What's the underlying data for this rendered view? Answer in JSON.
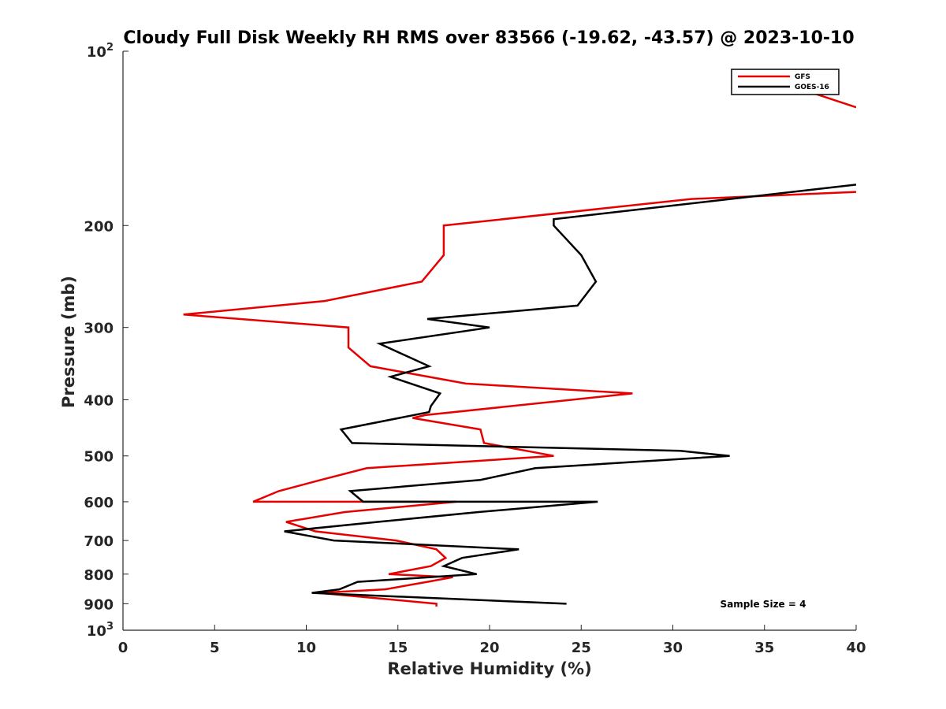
{
  "chart_data": {
    "type": "line",
    "title": "Cloudy Full Disk Weekly RH RMS over 83566 (-19.62, -43.57) @ 2023-10-10",
    "xlabel": "Relative Humidity (%)",
    "ylabel": "Pressure (mb)",
    "xlim": [
      0,
      40
    ],
    "ylim": [
      100,
      1000
    ],
    "yscale": "log",
    "yreversed": true,
    "xticks": [
      0,
      5,
      10,
      15,
      20,
      25,
      30,
      35,
      40
    ],
    "xtick_labels": [
      "0",
      "5",
      "10",
      "15",
      "20",
      "25",
      "30",
      "35",
      "40"
    ],
    "yticks": [
      {
        "value": 100,
        "base": "10",
        "exp": "2"
      },
      {
        "value": 200,
        "label": "200"
      },
      {
        "value": 300,
        "label": "300"
      },
      {
        "value": 400,
        "label": "400"
      },
      {
        "value": 500,
        "label": "500"
      },
      {
        "value": 600,
        "label": "600"
      },
      {
        "value": 700,
        "label": "700"
      },
      {
        "value": 800,
        "label": "800"
      },
      {
        "value": 900,
        "label": "900"
      },
      {
        "value": 1000,
        "base": "10",
        "exp": "3"
      }
    ],
    "grid": false,
    "legend_position": "top-right",
    "annotation": "Sample Size = 4",
    "series": [
      {
        "name": "GFS",
        "color": "#e60000",
        "points": [
          [
            40,
            125
          ],
          [
            36.9,
            116
          ],
          [
            40,
            175
          ],
          [
            31,
            180
          ],
          [
            17.5,
            200
          ],
          [
            17.5,
            225
          ],
          [
            16.3,
            250
          ],
          [
            11,
            270
          ],
          [
            3.3,
            285
          ],
          [
            12.3,
            300
          ],
          [
            12.3,
            325
          ],
          [
            13.5,
            350
          ],
          [
            18.7,
            375
          ],
          [
            27.8,
            390
          ],
          [
            16.5,
            425
          ],
          [
            15.8,
            430
          ],
          [
            19.5,
            450
          ],
          [
            19.7,
            475
          ],
          [
            23.5,
            500
          ],
          [
            13.3,
            525
          ],
          [
            10.8,
            550
          ],
          [
            8.5,
            575
          ],
          [
            7.1,
            600
          ],
          [
            18.2,
            600
          ],
          [
            12.1,
            625
          ],
          [
            8.9,
            650
          ],
          [
            10.5,
            675
          ],
          [
            14.9,
            700
          ],
          [
            17.1,
            725
          ],
          [
            17.6,
            750
          ],
          [
            16.8,
            775
          ],
          [
            14.5,
            800
          ],
          [
            18,
            810
          ],
          [
            16.6,
            825
          ],
          [
            14.3,
            850
          ],
          [
            10.7,
            862
          ],
          [
            17.1,
            900
          ],
          [
            17.1,
            910
          ]
        ]
      },
      {
        "name": "GOES-16",
        "color": "#000000",
        "points": [
          [
            40,
            170
          ],
          [
            23.5,
            195
          ],
          [
            23.5,
            200
          ],
          [
            25,
            225
          ],
          [
            25.8,
            250
          ],
          [
            24.8,
            275
          ],
          [
            16.6,
            290
          ],
          [
            20,
            300
          ],
          [
            14,
            320
          ],
          [
            16.7,
            350
          ],
          [
            14.6,
            365
          ],
          [
            17.3,
            390
          ],
          [
            16.8,
            410
          ],
          [
            16.7,
            420
          ],
          [
            11.9,
            450
          ],
          [
            12.5,
            475
          ],
          [
            30.4,
            490
          ],
          [
            33.1,
            500
          ],
          [
            22.5,
            525
          ],
          [
            19.5,
            550
          ],
          [
            12.4,
            575
          ],
          [
            13.1,
            600
          ],
          [
            25.9,
            600
          ],
          [
            19.4,
            625
          ],
          [
            13.9,
            650
          ],
          [
            8.8,
            675
          ],
          [
            11.5,
            700
          ],
          [
            21.6,
            725
          ],
          [
            18.5,
            750
          ],
          [
            17.5,
            775
          ],
          [
            19.3,
            800
          ],
          [
            12.8,
            825
          ],
          [
            11.8,
            850
          ],
          [
            10.3,
            862
          ],
          [
            24.2,
            900
          ]
        ]
      }
    ]
  }
}
